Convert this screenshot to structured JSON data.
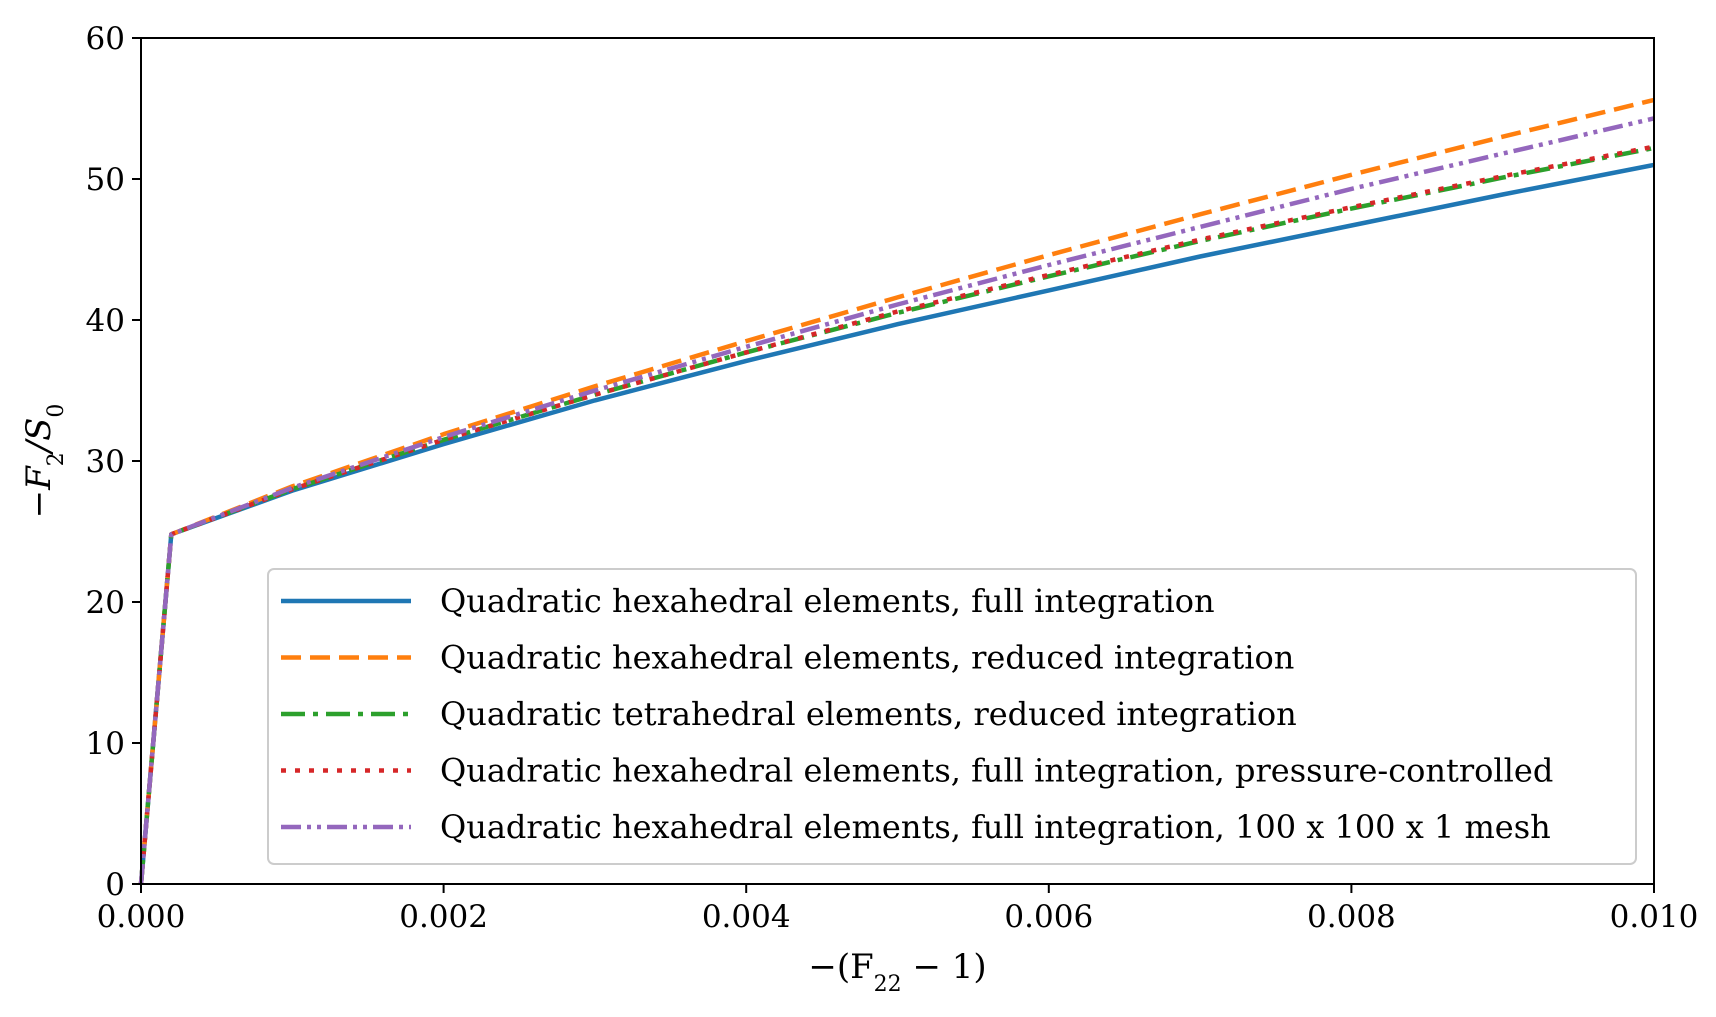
{
  "chart_data": {
    "type": "line",
    "title": "",
    "xlabel": "−(F",
    "xlabel_sub": "22",
    "xlabel_tail": " − 1)",
    "ylabel": "−F",
    "ylabel_sub": "2",
    "ylabel_mid": "/S",
    "ylabel_sub2": "0",
    "xlim": [
      0,
      0.01
    ],
    "ylim": [
      0,
      60
    ],
    "xticks": [
      0,
      0.002,
      0.004,
      0.006,
      0.008,
      0.01
    ],
    "xtick_labels": [
      "0.000",
      "0.002",
      "0.004",
      "0.006",
      "0.008",
      "0.010"
    ],
    "yticks": [
      0,
      10,
      20,
      30,
      40,
      50,
      60
    ],
    "ytick_labels": [
      "0",
      "10",
      "20",
      "30",
      "40",
      "50",
      "60"
    ],
    "grid": false,
    "legend_position": "lower-right",
    "series": [
      {
        "name": "Quadratic hexahedral elements, full integration",
        "color": "#1f77b4",
        "style": "solid",
        "x": [
          0,
          0.0002,
          0.001,
          0.002,
          0.003,
          0.004,
          0.005,
          0.006,
          0.007,
          0.008,
          0.009,
          0.01
        ],
        "y": [
          0,
          24.8,
          27.9,
          31.2,
          34.3,
          37.1,
          39.7,
          42.1,
          44.5,
          46.7,
          48.9,
          51.0
        ]
      },
      {
        "name": "Quadratic hexahedral elements, reduced integration",
        "color": "#ff7f0e",
        "style": "dashed",
        "x": [
          0,
          0.0002,
          0.001,
          0.002,
          0.003,
          0.004,
          0.005,
          0.006,
          0.007,
          0.008,
          0.009,
          0.01
        ],
        "y": [
          0,
          24.8,
          28.2,
          31.9,
          35.3,
          38.5,
          41.6,
          44.6,
          47.5,
          50.3,
          53.0,
          55.6
        ]
      },
      {
        "name": "Quadratic tetrahedral elements, reduced integration",
        "color": "#2ca02c",
        "style": "dashdot",
        "x": [
          0,
          0.0002,
          0.001,
          0.002,
          0.003,
          0.004,
          0.005,
          0.006,
          0.007,
          0.008,
          0.009,
          0.01
        ],
        "y": [
          0,
          24.8,
          28.0,
          31.5,
          34.7,
          37.7,
          40.5,
          43.1,
          45.6,
          47.9,
          50.1,
          52.2
        ]
      },
      {
        "name": "Quadratic hexahedral elements, full integration, pressure-controlled",
        "color": "#d62728",
        "style": "dotted",
        "x": [
          0,
          0.0002,
          0.001,
          0.002,
          0.003,
          0.004,
          0.005,
          0.006,
          0.007,
          0.008,
          0.009,
          0.01
        ],
        "y": [
          0,
          24.8,
          28.0,
          31.5,
          34.7,
          37.7,
          40.6,
          43.2,
          45.7,
          48.0,
          50.2,
          52.3
        ]
      },
      {
        "name": "Quadratic hexahedral elements, full integration, 100 x 100 x 1 mesh",
        "color": "#9467bd",
        "style": "dashdotdot",
        "x": [
          0,
          0.0002,
          0.001,
          0.002,
          0.003,
          0.004,
          0.005,
          0.006,
          0.007,
          0.008,
          0.009,
          0.01
        ],
        "y": [
          0,
          24.8,
          28.1,
          31.7,
          35.0,
          38.1,
          41.1,
          43.9,
          46.6,
          49.3,
          51.8,
          54.3
        ]
      }
    ]
  }
}
